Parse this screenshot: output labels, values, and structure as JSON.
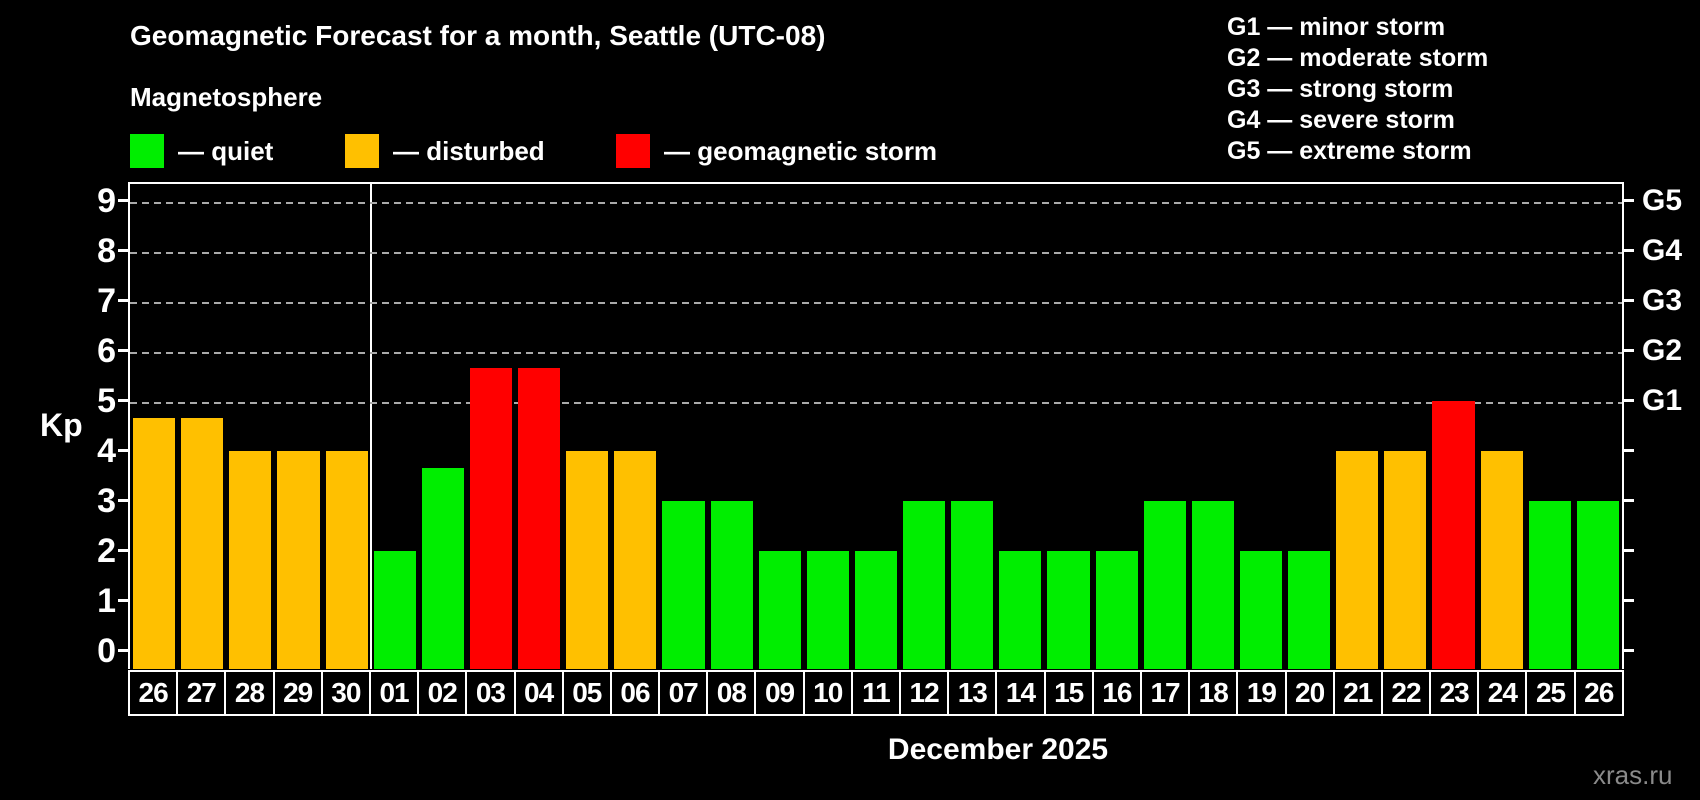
{
  "title": "Geomagnetic Forecast for a month, Seattle (UTC-08)",
  "subtitle": "Magnetosphere",
  "legend": {
    "items": [
      {
        "status": "quiet",
        "label": "— quiet"
      },
      {
        "status": "disturbed",
        "label": "— disturbed"
      },
      {
        "status": "storm",
        "label": "— geomagnetic storm"
      }
    ]
  },
  "g_legend": {
    "items": [
      {
        "label": "G1 — minor storm"
      },
      {
        "label": "G2 — moderate storm"
      },
      {
        "label": "G3 — strong storm"
      },
      {
        "label": "G4 — severe storm"
      },
      {
        "label": "G5 — extreme storm"
      }
    ]
  },
  "axis": {
    "y_label": "Kp",
    "y_ticks": [
      0,
      1,
      2,
      3,
      4,
      5,
      6,
      7,
      8,
      9
    ],
    "right_labels": {
      "5": "G1",
      "6": "G2",
      "7": "G3",
      "8": "G4",
      "9": "G5"
    }
  },
  "xlabel": "December 2025",
  "watermark": "xras.ru",
  "chart_data": {
    "type": "bar",
    "title": "Geomagnetic Forecast for a month, Seattle (UTC-08)",
    "xlabel": "December 2025",
    "ylabel": "Kp",
    "ylim": [
      0,
      9
    ],
    "grid": "dashed horizontal at Kp 5-9 only",
    "legend_position": "top-left and top-right",
    "gridlines_at": [
      5,
      6,
      7,
      8,
      9
    ],
    "separator_after_index": 4,
    "categories": [
      "26",
      "27",
      "28",
      "29",
      "30",
      "01",
      "02",
      "03",
      "04",
      "05",
      "06",
      "07",
      "08",
      "09",
      "10",
      "11",
      "12",
      "13",
      "14",
      "15",
      "16",
      "17",
      "18",
      "19",
      "20",
      "21",
      "22",
      "23",
      "24",
      "25",
      "26"
    ],
    "values": [
      4.67,
      4.67,
      4,
      4,
      4,
      2,
      3.67,
      5.67,
      5.67,
      4,
      4,
      3,
      3,
      2,
      2,
      2,
      3,
      3,
      2,
      2,
      2,
      3,
      3,
      2,
      2,
      4,
      4,
      5,
      4,
      3,
      3
    ],
    "statuses": [
      "disturbed",
      "disturbed",
      "disturbed",
      "disturbed",
      "disturbed",
      "quiet",
      "quiet",
      "storm",
      "storm",
      "disturbed",
      "disturbed",
      "quiet",
      "quiet",
      "quiet",
      "quiet",
      "quiet",
      "quiet",
      "quiet",
      "quiet",
      "quiet",
      "quiet",
      "quiet",
      "quiet",
      "quiet",
      "quiet",
      "disturbed",
      "disturbed",
      "storm",
      "disturbed",
      "quiet",
      "quiet"
    ],
    "status_colors": {
      "quiet": "#00ee00",
      "disturbed": "#ffc000",
      "storm": "#ff0000"
    },
    "colors": {
      "axis": "#ffffff",
      "gridline": "#aaaaaa",
      "background": "#000000",
      "watermark": "#8a8a8a"
    }
  }
}
